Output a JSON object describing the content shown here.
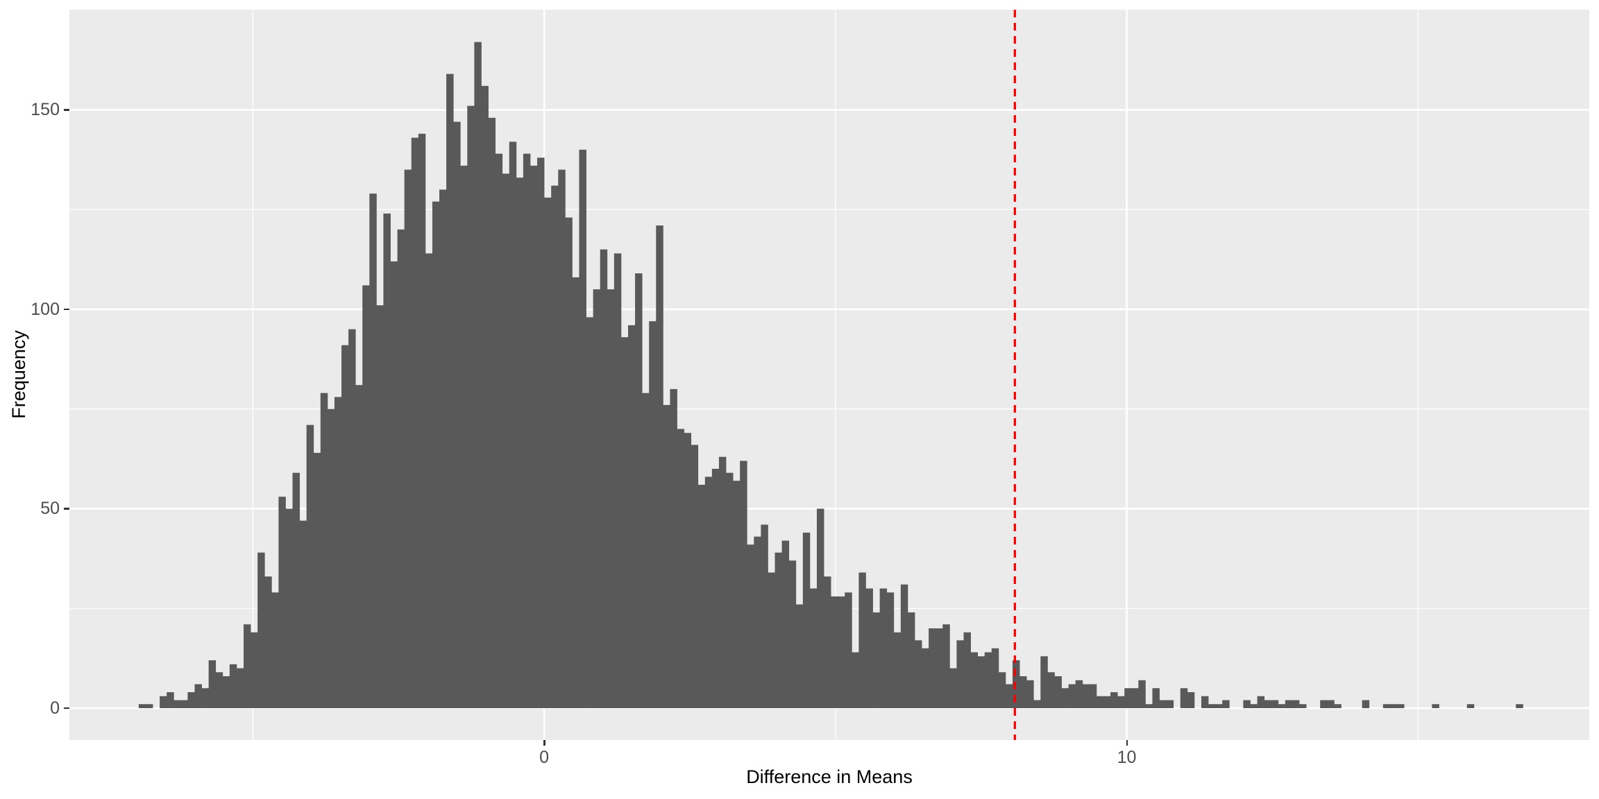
{
  "figure": {
    "background": "#FFFFFF"
  },
  "chart_data": {
    "type": "bar",
    "subtype": "histogram",
    "title": "",
    "xlabel": "Difference in Means",
    "ylabel": "Frequency",
    "x_axis": {
      "tick_values": [
        0,
        10
      ],
      "tick_labels": [
        "0",
        "10"
      ],
      "minor_gridlines": [
        -5,
        5,
        15
      ],
      "lim": [
        -8.15,
        17.94
      ]
    },
    "y_axis": {
      "tick_values": [
        0,
        50,
        100,
        150
      ],
      "tick_labels": [
        "0",
        "50",
        "100",
        "150"
      ],
      "minor_gridlines": [
        25,
        75,
        125
      ],
      "lim": [
        -8,
        175.1
      ]
    },
    "grid": "on",
    "legend": "none",
    "bin_start": -6.96,
    "bin_width": 0.12,
    "counts": [
      1,
      1,
      0,
      3,
      4,
      2,
      2,
      4,
      6,
      5,
      12,
      9,
      8,
      11,
      10,
      21,
      19,
      39,
      33,
      29,
      53,
      50,
      59,
      47,
      71,
      64,
      79,
      75,
      78,
      91,
      95,
      81,
      106,
      129,
      101,
      124,
      112,
      120,
      135,
      143,
      144,
      114,
      127,
      130,
      159,
      147,
      136,
      151,
      167,
      156,
      148,
      139,
      134,
      142,
      133,
      139,
      136,
      138,
      128,
      131,
      135,
      123,
      108,
      140,
      98,
      105,
      115,
      105,
      114,
      93,
      96,
      109,
      79,
      97,
      121,
      76,
      80,
      70,
      69,
      66,
      56,
      58,
      60,
      63,
      59,
      57,
      62,
      41,
      43,
      46,
      34,
      39,
      42,
      37,
      26,
      44,
      30,
      50,
      33,
      28,
      28,
      29,
      14,
      34,
      30,
      24,
      30,
      29,
      19,
      31,
      24,
      17,
      15,
      20,
      20,
      21,
      10,
      17,
      19,
      14,
      13,
      14,
      15,
      9,
      6,
      12,
      8,
      7,
      2,
      13,
      9,
      8,
      5,
      6,
      7,
      6,
      6,
      3,
      3,
      4,
      3,
      5,
      5,
      7,
      1,
      5,
      2,
      2,
      0,
      5,
      4,
      0,
      3,
      1,
      1,
      2,
      0,
      0,
      2,
      1,
      3,
      2,
      2,
      1,
      2,
      2,
      1,
      0,
      0,
      2,
      2,
      1,
      0,
      0,
      0,
      2,
      0,
      0,
      1,
      1,
      1,
      0,
      0,
      0,
      0,
      1,
      0,
      0,
      0,
      0,
      1,
      0,
      0,
      0,
      0,
      0,
      0,
      1
    ],
    "vline": {
      "x": 8.08,
      "style": "dashed",
      "width": 3.2,
      "dash": [
        11,
        8
      ],
      "color": "#FF0000"
    },
    "colors": {
      "bar": "#595959",
      "panel_bg": "#EBEBEB",
      "gridline": "#FFFFFF",
      "tick_text": "#4D4D4D",
      "axis_title_text": "#000000",
      "tick_mark": "#333333"
    }
  }
}
